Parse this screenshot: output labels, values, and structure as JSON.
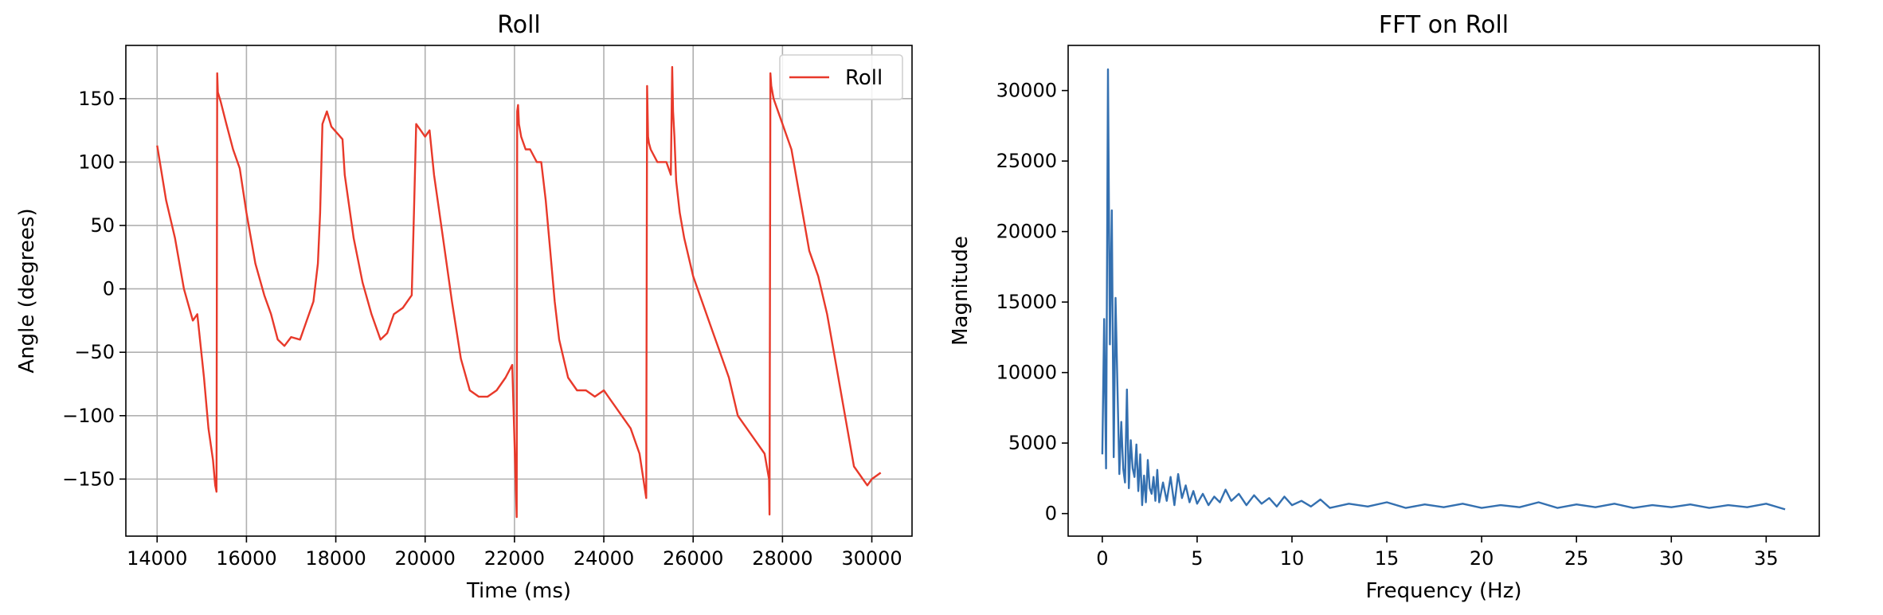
{
  "chart_data": [
    {
      "type": "line",
      "title": "Roll",
      "xlabel": "Time (ms)",
      "ylabel": "Angle (degrees)",
      "xlim": [
        13300,
        30900
      ],
      "ylim": [
        -195,
        192
      ],
      "xticks": [
        14000,
        16000,
        18000,
        20000,
        22000,
        24000,
        26000,
        28000,
        30000
      ],
      "yticks": [
        -150,
        -100,
        -50,
        0,
        50,
        100,
        150
      ],
      "grid": true,
      "legend": "top-right",
      "color": "#e8392a",
      "series": [
        {
          "name": "Roll",
          "x": [
            14000,
            14200,
            14400,
            14600,
            14800,
            14900,
            15050,
            15150,
            15250,
            15300,
            15330,
            15345,
            15360,
            15420,
            15550,
            15700,
            15850,
            16000,
            16200,
            16400,
            16550,
            16700,
            16850,
            17000,
            17200,
            17350,
            17500,
            17600,
            17650,
            17700,
            17800,
            17900,
            18050,
            18150,
            18200,
            18400,
            18600,
            18800,
            19000,
            19150,
            19300,
            19500,
            19700,
            19750,
            19800,
            19900,
            20000,
            20100,
            20200,
            20400,
            20600,
            20800,
            21000,
            21200,
            21400,
            21600,
            21800,
            21950,
            22050,
            22060,
            22080,
            22100,
            22150,
            22250,
            22350,
            22500,
            22600,
            22700,
            22800,
            22900,
            23000,
            23200,
            23400,
            23600,
            23800,
            24000,
            24200,
            24400,
            24600,
            24800,
            24950,
            24970,
            24990,
            25010,
            25050,
            25200,
            25400,
            25500,
            25530,
            25550,
            25580,
            25620,
            25700,
            25800,
            26000,
            26200,
            26400,
            26600,
            26800,
            27000,
            27200,
            27400,
            27600,
            27700,
            27710,
            27730,
            27750,
            27800,
            27900,
            28000,
            28100,
            28200,
            28400,
            28600,
            28800,
            29000,
            29200,
            29400,
            29600,
            29800,
            29900,
            30000,
            30200
          ],
          "y": [
            113,
            70,
            40,
            0,
            -25,
            -20,
            -70,
            -110,
            -135,
            -155,
            -160,
            170,
            155,
            148,
            130,
            110,
            95,
            60,
            20,
            -5,
            -20,
            -40,
            -45,
            -38,
            -40,
            -25,
            -10,
            20,
            60,
            130,
            140,
            128,
            122,
            118,
            90,
            40,
            5,
            -20,
            -40,
            -35,
            -20,
            -15,
            -5,
            60,
            130,
            125,
            120,
            125,
            90,
            40,
            -10,
            -55,
            -80,
            -85,
            -85,
            -80,
            -70,
            -60,
            -180,
            140,
            145,
            130,
            120,
            110,
            110,
            100,
            100,
            70,
            30,
            -10,
            -40,
            -70,
            -80,
            -80,
            -85,
            -80,
            -90,
            -100,
            -110,
            -130,
            -165,
            160,
            120,
            115,
            110,
            100,
            100,
            90,
            175,
            140,
            120,
            85,
            60,
            40,
            10,
            -10,
            -30,
            -50,
            -70,
            -100,
            -110,
            -120,
            -130,
            -150,
            -178,
            170,
            160,
            150,
            140,
            130,
            120,
            110,
            70,
            30,
            10,
            -20,
            -60,
            -100,
            -140,
            -150,
            -155,
            -150,
            -145
          ]
        }
      ]
    },
    {
      "type": "line",
      "title": "FFT on Roll",
      "xlabel": "Frequency (Hz)",
      "ylabel": "Magnitude",
      "xlim": [
        -1.8,
        37.8
      ],
      "ylim": [
        -1600,
        33200
      ],
      "xticks": [
        0,
        5,
        10,
        15,
        20,
        25,
        30,
        35
      ],
      "yticks": [
        0,
        5000,
        10000,
        15000,
        20000,
        25000,
        30000
      ],
      "grid": false,
      "color": "#3470b0",
      "series": [
        {
          "x": [
            0,
            0.1,
            0.2,
            0.3,
            0.4,
            0.5,
            0.6,
            0.7,
            0.8,
            0.9,
            1.0,
            1.1,
            1.2,
            1.3,
            1.4,
            1.5,
            1.6,
            1.7,
            1.8,
            1.9,
            2.0,
            2.1,
            2.2,
            2.3,
            2.4,
            2.5,
            2.6,
            2.7,
            2.8,
            2.9,
            3.0,
            3.2,
            3.4,
            3.6,
            3.8,
            4.0,
            4.2,
            4.4,
            4.6,
            4.8,
            5.0,
            5.3,
            5.6,
            5.9,
            6.2,
            6.5,
            6.8,
            7.2,
            7.6,
            8.0,
            8.4,
            8.8,
            9.2,
            9.6,
            10.0,
            10.5,
            11.0,
            11.5,
            12.0,
            13,
            14,
            15,
            16,
            17,
            18,
            19,
            20,
            21,
            22,
            23,
            24,
            25,
            26,
            27,
            28,
            29,
            30,
            31,
            32,
            33,
            34,
            35,
            36.0
          ],
          "y": [
            4200,
            13800,
            3200,
            31500,
            12000,
            21500,
            4000,
            15300,
            9000,
            2800,
            6500,
            3200,
            2200,
            8800,
            1800,
            5200,
            3200,
            2600,
            4900,
            1600,
            4200,
            600,
            2700,
            800,
            3800,
            1800,
            1400,
            2600,
            900,
            3100,
            800,
            2200,
            900,
            2600,
            600,
            2800,
            1100,
            2000,
            800,
            1600,
            700,
            1400,
            600,
            1200,
            800,
            1700,
            900,
            1400,
            600,
            1300,
            700,
            1100,
            500,
            1200,
            600,
            900,
            500,
            1000,
            400,
            700,
            500,
            800,
            400,
            650,
            450,
            700,
            400,
            600,
            450,
            800,
            400,
            650,
            450,
            700,
            400,
            600,
            450,
            650,
            400,
            600,
            450,
            700,
            300
          ]
        }
      ]
    }
  ]
}
